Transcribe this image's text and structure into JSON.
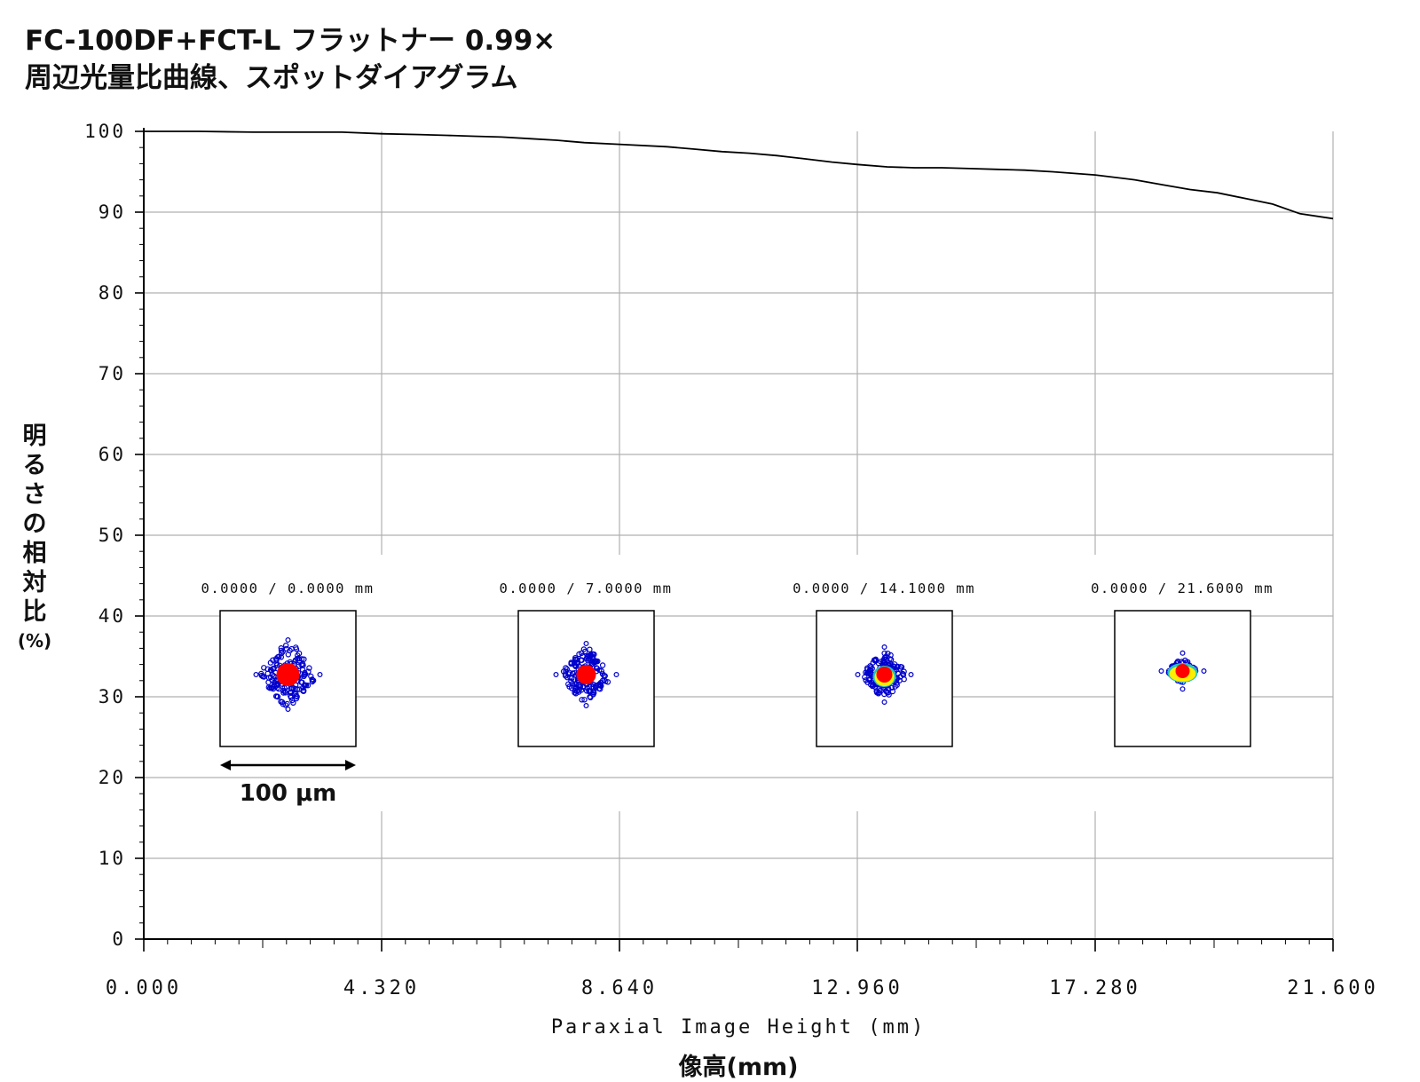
{
  "title_line1": "FC-100DF+FCT-L フラットナー 0.99×",
  "title_line2": "周辺光量比曲線、スポットダイアグラム",
  "chart_data": {
    "type": "line",
    "title": "FC-100DF+FCT-L フラットナー 0.99× 周辺光量比曲線、スポットダイアグラム",
    "xlabel": "Paraxial Image Height (mm)",
    "xlabel_ja": "像高(mm)",
    "ylabel": "明るさの相対比",
    "ylabel_unit": "(%)",
    "xlim": [
      0,
      21.6
    ],
    "ylim": [
      0,
      100
    ],
    "x_ticks": [
      0,
      4.32,
      8.64,
      12.96,
      17.28,
      21.6
    ],
    "x_tick_labels": [
      "0.000",
      "4.320",
      "8.640",
      "12.960",
      "17.280",
      "21.600"
    ],
    "y_ticks": [
      0,
      10,
      20,
      30,
      40,
      50,
      60,
      70,
      80,
      90,
      100
    ],
    "y_tick_labels": [
      "0",
      "10",
      "20",
      "30",
      "40",
      "50",
      "60",
      "70",
      "80",
      "90",
      "100"
    ],
    "grid": true,
    "series": [
      {
        "color": "#000000",
        "x": [
          0,
          1.0,
          2.0,
          3.0,
          3.6,
          4.32,
          5.0,
          5.5,
          6.0,
          6.5,
          7.0,
          7.5,
          8.0,
          8.64,
          9.5,
          10.0,
          10.5,
          11.0,
          11.5,
          12.0,
          12.5,
          12.96,
          13.5,
          14.0,
          14.5,
          15.0,
          15.5,
          16.0,
          16.5,
          17.28,
          18.0,
          18.5,
          19.0,
          19.5,
          20.0,
          20.5,
          21.0,
          21.6
        ],
        "y": [
          100,
          100,
          99.9,
          99.9,
          99.9,
          99.7,
          99.6,
          99.5,
          99.4,
          99.3,
          99.1,
          98.9,
          98.6,
          98.4,
          98.1,
          97.8,
          97.5,
          97.3,
          97.0,
          96.6,
          96.2,
          95.9,
          95.6,
          95.5,
          95.5,
          95.4,
          95.3,
          95.2,
          95.0,
          94.6,
          94.0,
          93.4,
          92.8,
          92.4,
          91.7,
          91.0,
          89.8,
          89.2
        ]
      }
    ],
    "spot_diagram": {
      "scale_label": "100 μm",
      "field_labels": [
        "0.0000 /    0.0000 mm",
        "0.0000 /    7.0000 mm",
        "0.0000 /  14.1000 mm",
        "0.0000 /  21.6000 mm"
      ],
      "colors": {
        "ring": "#0000cc",
        "core": "#ff0000",
        "halo": "#ffee00",
        "halo_edge": "#22c4c4"
      }
    }
  }
}
